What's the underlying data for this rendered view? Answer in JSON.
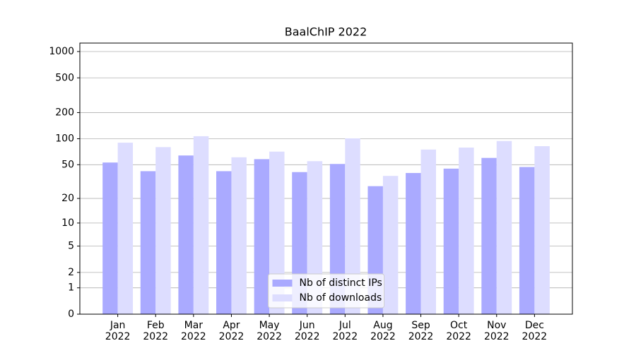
{
  "chart_data": {
    "type": "bar",
    "title": "BaalChIP 2022",
    "categories": [
      "Jan\n2022",
      "Feb\n2022",
      "Mar\n2022",
      "Apr\n2022",
      "May\n2022",
      "Jun\n2022",
      "Jul\n2022",
      "Aug\n2022",
      "Sep\n2022",
      "Oct\n2022",
      "Nov\n2022",
      "Dec\n2022"
    ],
    "series": [
      {
        "name": "Nb of distinct IPs",
        "color": "#aaaaff",
        "values": [
          53,
          42,
          64,
          42,
          58,
          41,
          51,
          28,
          40,
          45,
          60,
          47
        ]
      },
      {
        "name": "Nb of downloads",
        "color": "#ddddff",
        "values": [
          90,
          80,
          107,
          61,
          71,
          55,
          101,
          37,
          75,
          79,
          94,
          82
        ]
      }
    ],
    "yscale": "log1p",
    "ylim": [
      0,
      1250
    ],
    "yticks": [
      0,
      1,
      2,
      5,
      10,
      20,
      50,
      100,
      200,
      500,
      1000
    ],
    "grid": true,
    "legend": "lower center"
  }
}
